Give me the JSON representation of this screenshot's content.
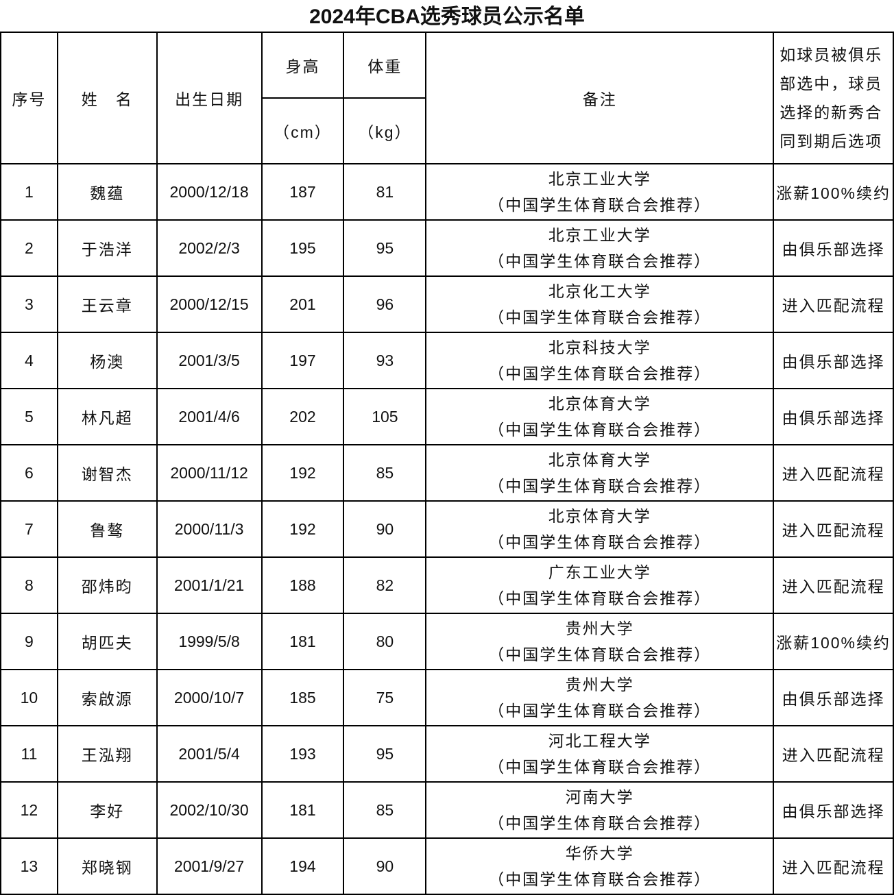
{
  "title": "2024年CBA选秀球员公示名单",
  "headers": {
    "no": "序号",
    "name": "姓　名",
    "birth": "出生日期",
    "height": "身高",
    "height_unit": "（cm）",
    "weight": "体重",
    "weight_unit": "（kg）",
    "note": "备注",
    "option": "如球员被俱乐部选中，球员选择的新秀合同到期后选项"
  },
  "rows": [
    {
      "no": "1",
      "name": "魏蕴",
      "birth": "2000/12/18",
      "height": "187",
      "weight": "81",
      "school": "北京工业大学",
      "rec": "（中国学生体育联合会推荐）",
      "option": "涨薪100%续约"
    },
    {
      "no": "2",
      "name": "于浩洋",
      "birth": "2002/2/3",
      "height": "195",
      "weight": "95",
      "school": "北京工业大学",
      "rec": "（中国学生体育联合会推荐）",
      "option": "由俱乐部选择"
    },
    {
      "no": "3",
      "name": "王云章",
      "birth": "2000/12/15",
      "height": "201",
      "weight": "96",
      "school": "北京化工大学",
      "rec": "（中国学生体育联合会推荐）",
      "option": "进入匹配流程"
    },
    {
      "no": "4",
      "name": "杨澳",
      "birth": "2001/3/5",
      "height": "197",
      "weight": "93",
      "school": "北京科技大学",
      "rec": "（中国学生体育联合会推荐）",
      "option": "由俱乐部选择"
    },
    {
      "no": "5",
      "name": "林凡超",
      "birth": "2001/4/6",
      "height": "202",
      "weight": "105",
      "school": "北京体育大学",
      "rec": "（中国学生体育联合会推荐）",
      "option": "由俱乐部选择"
    },
    {
      "no": "6",
      "name": "谢智杰",
      "birth": "2000/11/12",
      "height": "192",
      "weight": "85",
      "school": "北京体育大学",
      "rec": "（中国学生体育联合会推荐）",
      "option": "进入匹配流程"
    },
    {
      "no": "7",
      "name": "鲁骜",
      "birth": "2000/11/3",
      "height": "192",
      "weight": "90",
      "school": "北京体育大学",
      "rec": "（中国学生体育联合会推荐）",
      "option": "进入匹配流程"
    },
    {
      "no": "8",
      "name": "邵炜昀",
      "birth": "2001/1/21",
      "height": "188",
      "weight": "82",
      "school": "广东工业大学",
      "rec": "（中国学生体育联合会推荐）",
      "option": "进入匹配流程"
    },
    {
      "no": "9",
      "name": "胡匹夫",
      "birth": "1999/5/8",
      "height": "181",
      "weight": "80",
      "school": "贵州大学",
      "rec": "（中国学生体育联合会推荐）",
      "option": "涨薪100%续约"
    },
    {
      "no": "10",
      "name": "索啟源",
      "birth": "2000/10/7",
      "height": "185",
      "weight": "75",
      "school": "贵州大学",
      "rec": "（中国学生体育联合会推荐）",
      "option": "由俱乐部选择"
    },
    {
      "no": "11",
      "name": "王泓翔",
      "birth": "2001/5/4",
      "height": "193",
      "weight": "95",
      "school": "河北工程大学",
      "rec": "（中国学生体育联合会推荐）",
      "option": "进入匹配流程"
    },
    {
      "no": "12",
      "name": "李好",
      "birth": "2002/10/30",
      "height": "181",
      "weight": "85",
      "school": "河南大学",
      "rec": "（中国学生体育联合会推荐）",
      "option": "由俱乐部选择"
    },
    {
      "no": "13",
      "name": "郑晓钢",
      "birth": "2001/9/27",
      "height": "194",
      "weight": "90",
      "school": "华侨大学",
      "rec": "（中国学生体育联合会推荐）",
      "option": "进入匹配流程"
    }
  ]
}
